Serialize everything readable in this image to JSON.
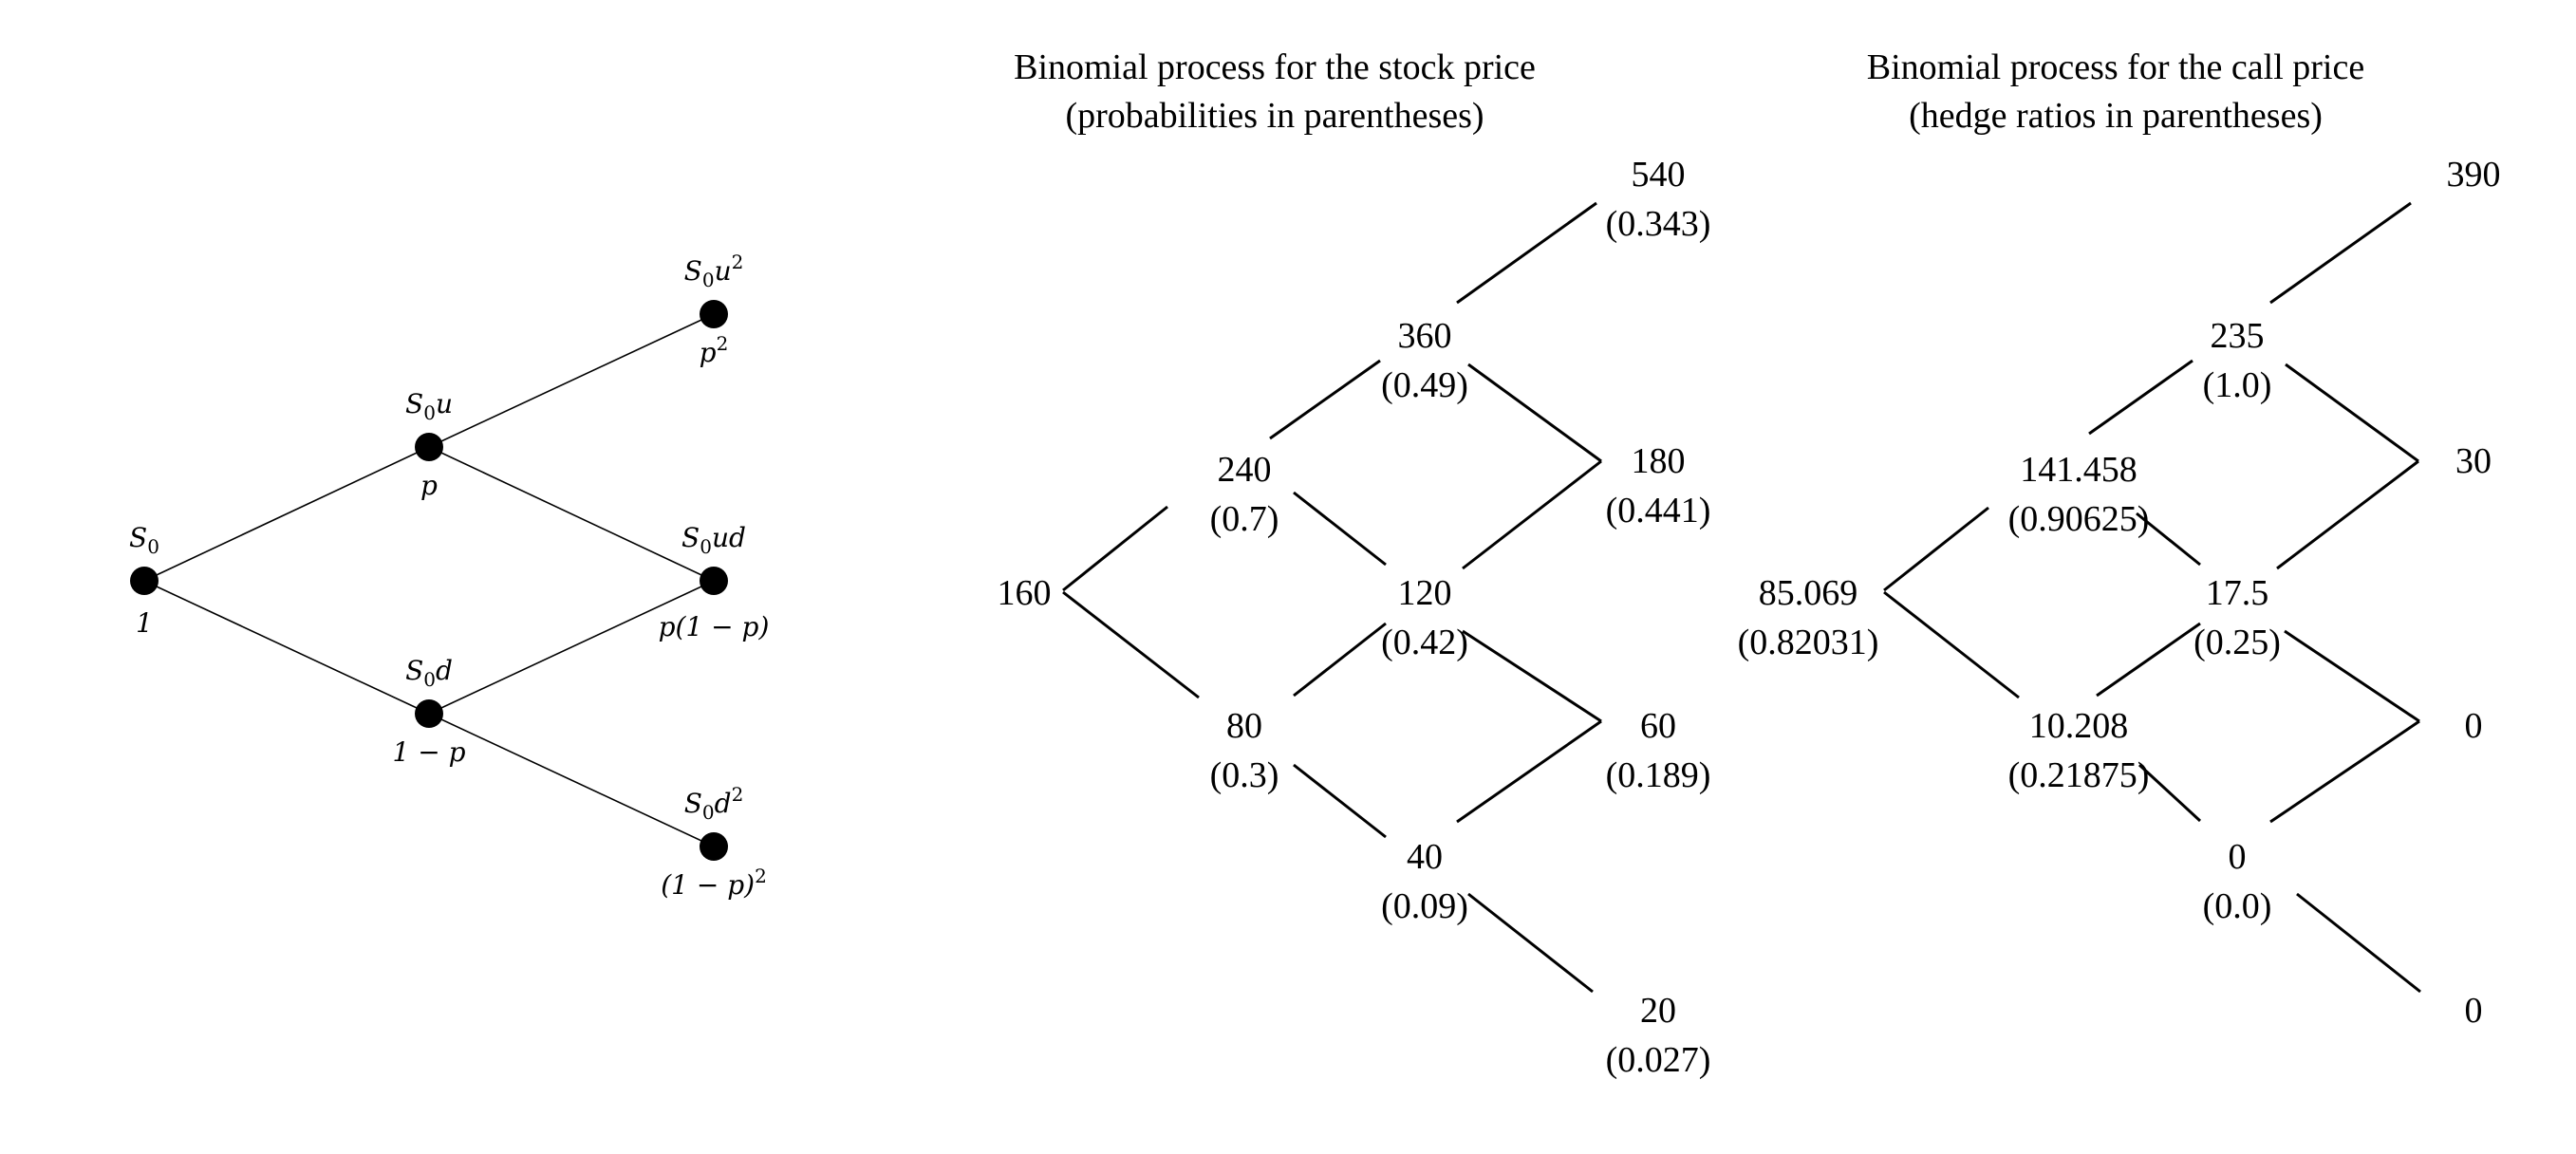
{
  "tree_left": {
    "nodes": [
      {
        "id": "s0",
        "label": "S",
        "sub": "0",
        "rest": "",
        "sup": "",
        "prob": "1"
      },
      {
        "id": "s0u",
        "label": "S",
        "sub": "0",
        "rest": "u",
        "sup": "",
        "prob": "p"
      },
      {
        "id": "s0d",
        "label": "S",
        "sub": "0",
        "rest": "d",
        "sup": "",
        "prob": "1 − p"
      },
      {
        "id": "s0u2",
        "label": "S",
        "sub": "0",
        "rest": "u",
        "sup": "2",
        "prob": "p",
        "prob_sup": "2"
      },
      {
        "id": "s0ud",
        "label": "S",
        "sub": "0",
        "rest": "ud",
        "sup": "",
        "prob": "p(1 − p)"
      },
      {
        "id": "s0d2",
        "label": "S",
        "sub": "0",
        "rest": "d",
        "sup": "2",
        "prob": "(1 − p)",
        "prob_sup": "2"
      }
    ],
    "edges": [
      [
        "s0",
        "s0u"
      ],
      [
        "s0",
        "s0d"
      ],
      [
        "s0u",
        "s0u2"
      ],
      [
        "s0u",
        "s0ud"
      ],
      [
        "s0d",
        "s0ud"
      ],
      [
        "s0d",
        "s0d2"
      ]
    ]
  },
  "stock_tree": {
    "title_line1": "Binomial process for the stock price",
    "title_line2": "(probabilities in parentheses)",
    "nodes": [
      {
        "id": "a",
        "value": "160",
        "sub": ""
      },
      {
        "id": "b",
        "value": "240",
        "sub": "(0.7)"
      },
      {
        "id": "c",
        "value": "80",
        "sub": "(0.3)"
      },
      {
        "id": "d",
        "value": "360",
        "sub": "(0.49)"
      },
      {
        "id": "e",
        "value": "120",
        "sub": "(0.42)"
      },
      {
        "id": "f",
        "value": "40",
        "sub": "(0.09)"
      },
      {
        "id": "g",
        "value": "540",
        "sub": "(0.343)"
      },
      {
        "id": "h",
        "value": "180",
        "sub": "(0.441)"
      },
      {
        "id": "i",
        "value": "60",
        "sub": "(0.189)"
      },
      {
        "id": "j",
        "value": "20",
        "sub": "(0.027)"
      }
    ]
  },
  "call_tree": {
    "title_line1": "Binomial process for the call price",
    "title_line2": "(hedge ratios in parentheses)",
    "nodes": [
      {
        "id": "a",
        "value": "85.069",
        "sub": "(0.82031)"
      },
      {
        "id": "b",
        "value": "141.458",
        "sub": "(0.90625)"
      },
      {
        "id": "c",
        "value": "10.208",
        "sub": "(0.21875)"
      },
      {
        "id": "d",
        "value": "235",
        "sub": "(1.0)"
      },
      {
        "id": "e",
        "value": "17.5",
        "sub": "(0.25)"
      },
      {
        "id": "f",
        "value": "0",
        "sub": "(0.0)"
      },
      {
        "id": "g",
        "value": "390",
        "sub": ""
      },
      {
        "id": "h",
        "value": "30",
        "sub": ""
      },
      {
        "id": "i",
        "value": "0",
        "sub": ""
      },
      {
        "id": "j",
        "value": "0",
        "sub": ""
      }
    ]
  },
  "edges_lattice": [
    [
      "a",
      "b"
    ],
    [
      "a",
      "c"
    ],
    [
      "b",
      "d"
    ],
    [
      "b",
      "e"
    ],
    [
      "c",
      "e"
    ],
    [
      "c",
      "f"
    ],
    [
      "d",
      "g"
    ],
    [
      "d",
      "h"
    ],
    [
      "e",
      "h"
    ],
    [
      "e",
      "i"
    ],
    [
      "f",
      "i"
    ],
    [
      "f",
      "j"
    ]
  ]
}
